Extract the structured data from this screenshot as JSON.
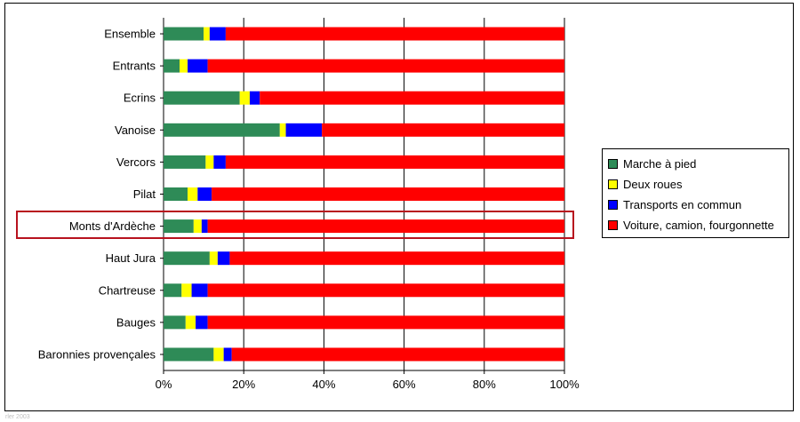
{
  "footnote": "rler 2003",
  "chart_data": {
    "type": "bar",
    "orientation": "horizontal",
    "stacked": true,
    "normalized_percent": true,
    "categories": [
      "Ensemble",
      "Entrants",
      "Ecrins",
      "Vanoise",
      "Vercors",
      "Pilat",
      "Monts d'Ardèche",
      "Haut Jura",
      "Chartreuse",
      "Bauges",
      "Baronnies provençales"
    ],
    "series": [
      {
        "name": "Marche à pied",
        "color": "#2e8b57",
        "values": [
          10,
          4,
          19,
          29,
          10.5,
          6,
          7.5,
          11.5,
          4.5,
          5.5,
          12.5
        ]
      },
      {
        "name": "Deux roues",
        "color": "#ffff00",
        "values": [
          1.5,
          2,
          2.5,
          1.5,
          2,
          2.5,
          2,
          2,
          2.5,
          2.5,
          2.5
        ]
      },
      {
        "name": "Transports en commun",
        "color": "#0000ff",
        "values": [
          4,
          5,
          2.5,
          9,
          3,
          3.5,
          1.5,
          3,
          4,
          3,
          2
        ]
      },
      {
        "name": "Voiture, camion, fourgonnette",
        "color": "#ff0000",
        "values": [
          84.5,
          89,
          76,
          60.5,
          84.5,
          88,
          89,
          83.5,
          89,
          89,
          83
        ]
      }
    ],
    "xaxis": {
      "ticks": [
        "0%",
        "20%",
        "40%",
        "60%",
        "80%",
        "100%"
      ],
      "range": [
        0,
        100
      ],
      "grid": true
    },
    "legend_position": "right",
    "highlighted_category": "Monts d'Ardèche",
    "highlight_color": "#b8121e"
  }
}
